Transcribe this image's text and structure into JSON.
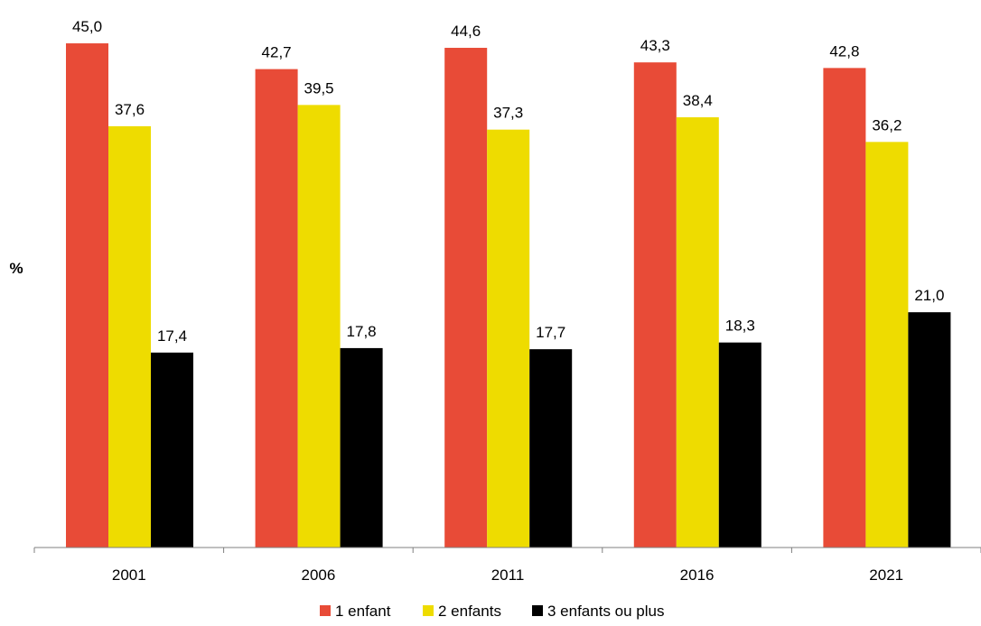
{
  "chart_data": {
    "type": "bar",
    "title": "",
    "xlabel": "",
    "ylabel": "%",
    "ylim": [
      0,
      47.5
    ],
    "grid": false,
    "legend_position": "bottom",
    "categories": [
      "2001",
      "2006",
      "2011",
      "2016",
      "2021"
    ],
    "series": [
      {
        "name": "1 enfant",
        "color": "#e84b37",
        "values": [
          45.0,
          42.7,
          44.6,
          43.3,
          42.8
        ],
        "labels": [
          "45,0",
          "42,7",
          "44,6",
          "43,3",
          "42,8"
        ]
      },
      {
        "name": "2 enfants",
        "color": "#eedc00",
        "values": [
          37.6,
          39.5,
          37.3,
          38.4,
          36.2
        ],
        "labels": [
          "37,6",
          "39,5",
          "37,3",
          "38,4",
          "36,2"
        ]
      },
      {
        "name": "3 enfants ou plus",
        "color": "#000000",
        "values": [
          17.4,
          17.8,
          17.7,
          18.3,
          21.0
        ],
        "labels": [
          "17,4",
          "17,8",
          "17,7",
          "18,3",
          "21,0"
        ]
      }
    ]
  }
}
